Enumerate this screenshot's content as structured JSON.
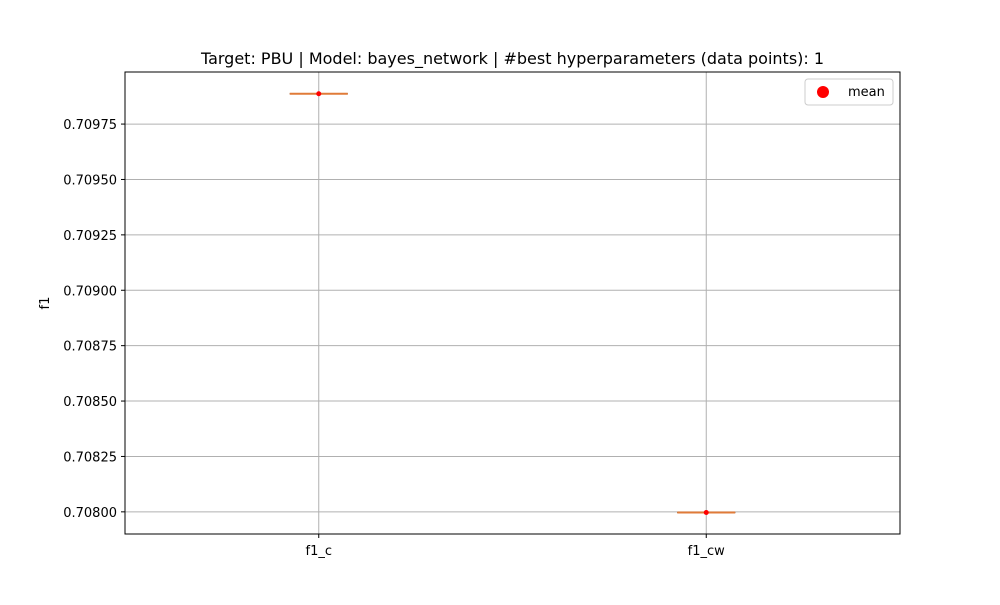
{
  "chart_data": {
    "type": "box",
    "title": "Target: PBU | Model: bayes_network | #best hyperparameters (data points): 1",
    "xlabel": "",
    "ylabel": "f1",
    "categories": [
      "f1_c",
      "f1_cw"
    ],
    "values": [
      0.709887,
      0.707997
    ],
    "means": [
      0.709887,
      0.707997
    ],
    "ylim": [
      0.7079,
      0.709985
    ],
    "yticks": [
      0.708,
      0.70825,
      0.7085,
      0.70875,
      0.709,
      0.70925,
      0.7095,
      0.70975
    ],
    "ytick_labels": [
      "0.70800",
      "0.70825",
      "0.70850",
      "0.70875",
      "0.70900",
      "0.70925",
      "0.70950",
      "0.70975"
    ],
    "grid": true,
    "legend": {
      "position": "top-right",
      "entries": [
        {
          "label": "mean",
          "marker": "circle",
          "color": "#ff0000"
        }
      ]
    },
    "colors": {
      "median": "#e07b39",
      "mean": "#ff0000",
      "grid": "#b0b0b0",
      "axes": "#000000"
    }
  }
}
